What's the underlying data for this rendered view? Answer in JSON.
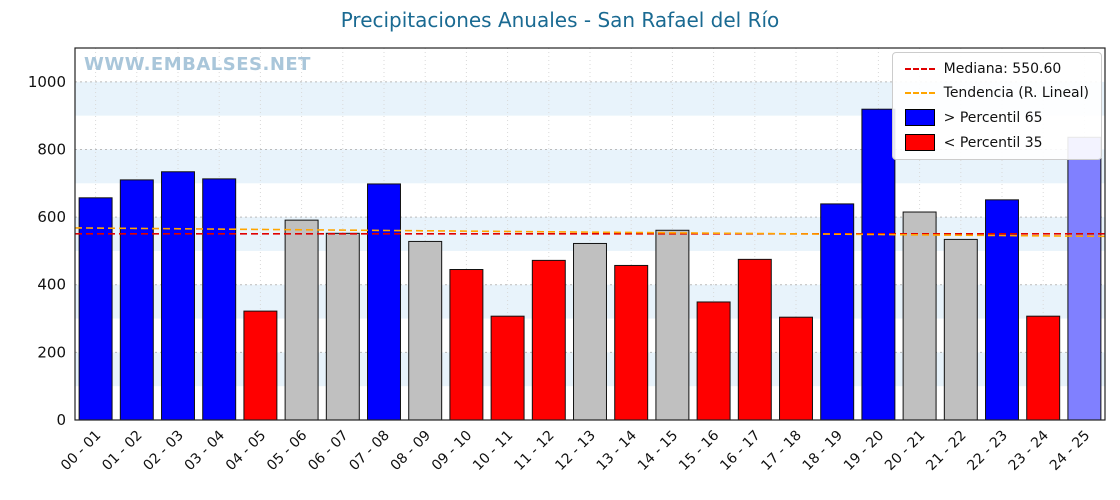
{
  "chart_data": {
    "type": "bar",
    "title": "Precipitaciones Anuales - San Rafael del Río",
    "watermark": "WWW.EMBALSES.NET",
    "categories": [
      "00 - 01",
      "01 - 02",
      "02 - 03",
      "03 - 04",
      "04 - 05",
      "05 - 06",
      "06 - 07",
      "07 - 08",
      "08 - 09",
      "09 - 10",
      "10 - 11",
      "11 - 12",
      "12 - 13",
      "13 - 14",
      "14 - 15",
      "15 - 16",
      "16 - 17",
      "17 - 18",
      "18 - 19",
      "19 - 20",
      "20 - 21",
      "21 - 22",
      "22 - 23",
      "23 - 24",
      "24 - 25"
    ],
    "values": [
      657,
      710,
      734,
      713,
      322,
      591,
      552,
      698,
      528,
      445,
      307,
      472,
      522,
      457,
      561,
      349,
      475,
      304,
      639,
      919,
      615,
      534,
      651,
      307,
      836
    ],
    "bar_classes": [
      "blue",
      "blue",
      "blue",
      "blue",
      "red",
      "gray",
      "gray",
      "blue",
      "gray",
      "red",
      "red",
      "red",
      "gray",
      "red",
      "gray",
      "red",
      "red",
      "red",
      "blue",
      "blue",
      "gray",
      "gray",
      "blue",
      "red",
      "lightblue"
    ],
    "palette": {
      "blue": "#0000ff",
      "red": "#ff0000",
      "gray": "#c0c0c0",
      "lightblue": "#8080ff"
    },
    "ylim": [
      0,
      1100
    ],
    "yticks": [
      0,
      200,
      400,
      600,
      800,
      1000
    ],
    "grid": true,
    "band_color": "#e8f3fb",
    "median": {
      "value": 550.6,
      "color": "#e00000"
    },
    "trend": {
      "start": 568,
      "end": 543,
      "color": "#ffa500"
    },
    "legend": [
      {
        "label": "Mediana: 550.60",
        "kind": "line-red-dashed"
      },
      {
        "label": "Tendencia (R. Lineal)",
        "kind": "line-orange-dashed"
      },
      {
        "label": "> Percentil 65",
        "kind": "patch-blue"
      },
      {
        "label": "< Percentil 35",
        "kind": "patch-red"
      }
    ],
    "legend_position": "upper-right",
    "xlabel": "",
    "ylabel": ""
  }
}
